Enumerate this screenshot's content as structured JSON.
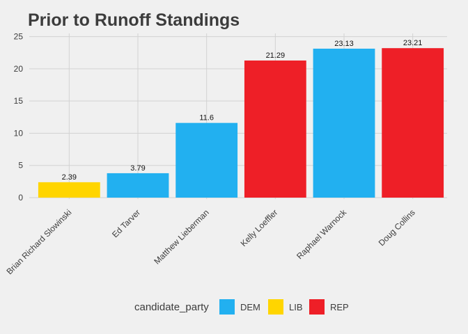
{
  "chart_data": {
    "type": "bar",
    "title": "Prior to Runoff Standings",
    "xlabel": "",
    "ylabel": "",
    "ylim": [
      0,
      25.5
    ],
    "yticks": [
      0,
      5,
      10,
      15,
      20,
      25
    ],
    "grid": true,
    "legend_position": "bottom",
    "categories": [
      "Brian Richard Slowinski",
      "Ed Tarver",
      "Matthew Lieberman",
      "Kelly Loeffler",
      "Raphael Warnock",
      "Doug Collins"
    ],
    "values": [
      2.39,
      3.79,
      11.6,
      21.29,
      23.13,
      23.21
    ],
    "labels": [
      "2.39",
      "3.79",
      "11.6",
      "21.29",
      "23.13",
      "23.21"
    ],
    "party": [
      "LIB",
      "DEM",
      "DEM",
      "REP",
      "DEM",
      "REP"
    ],
    "legend": {
      "title": "candidate_party",
      "entries": [
        {
          "name": "DEM",
          "color": "#22B0F0"
        },
        {
          "name": "LIB",
          "color": "#FFD500"
        },
        {
          "name": "REP",
          "color": "#EE1F27"
        }
      ]
    }
  }
}
